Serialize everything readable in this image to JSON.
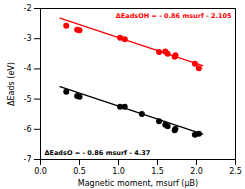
{
  "chart_data": {
    "type": "scatter",
    "xlabel": "Magnetic moment, msurf (μB)",
    "ylabel": "ΔEads (eV)",
    "xlim": [
      0,
      2.5
    ],
    "ylim": [
      -7,
      -2
    ],
    "xticks": [
      {
        "value": 0,
        "label": "0.0"
      },
      0.5,
      {
        "value": 1.0,
        "label": "1.0"
      },
      {
        "value": 1.5,
        "label": "1.5"
      },
      {
        "value": 2.0,
        "label": "2.0"
      },
      2.5
    ],
    "yticks": [
      -7,
      -6,
      -5,
      -4,
      -3,
      -2
    ],
    "series": [
      {
        "type": "line",
        "color": "#ff0000",
        "x": [
          0.25,
          2.08
        ],
        "values": [
          -2.32,
          -3.8938
        ]
      },
      {
        "type": "line",
        "color": "#000000",
        "x": [
          0.25,
          2.08
        ],
        "values": [
          -4.585,
          -6.1588
        ]
      },
      {
        "type": "scatter",
        "color": "#ff0000",
        "x": [
          0.33,
          0.47,
          0.5,
          1.02,
          1.08,
          1.52,
          1.6,
          1.63,
          1.72,
          1.73,
          1.98,
          2.03
        ],
        "values": [
          -2.57,
          -2.7,
          -2.72,
          -2.97,
          -3.02,
          -3.44,
          -3.42,
          -3.5,
          -3.6,
          -3.55,
          -3.83,
          -3.98
        ]
      },
      {
        "type": "scatter",
        "color": "#000000",
        "x": [
          0.33,
          0.47,
          0.5,
          1.02,
          1.08,
          1.3,
          1.52,
          1.6,
          1.63,
          1.72,
          1.73,
          1.98,
          2.03
        ],
        "values": [
          -4.76,
          -4.9,
          -4.92,
          -5.25,
          -5.25,
          -5.49,
          -5.73,
          -5.85,
          -5.9,
          -6.03,
          -5.98,
          -6.18,
          -6.15
        ]
      }
    ],
    "annotations": [
      {
        "text": "ΔEadsOH = - 0.86 msurf - 2.105",
        "color": "#ff0000"
      },
      {
        "text": "ΔEadsO = - 0.86 msurf - 4.37",
        "color": "#000000"
      }
    ]
  }
}
